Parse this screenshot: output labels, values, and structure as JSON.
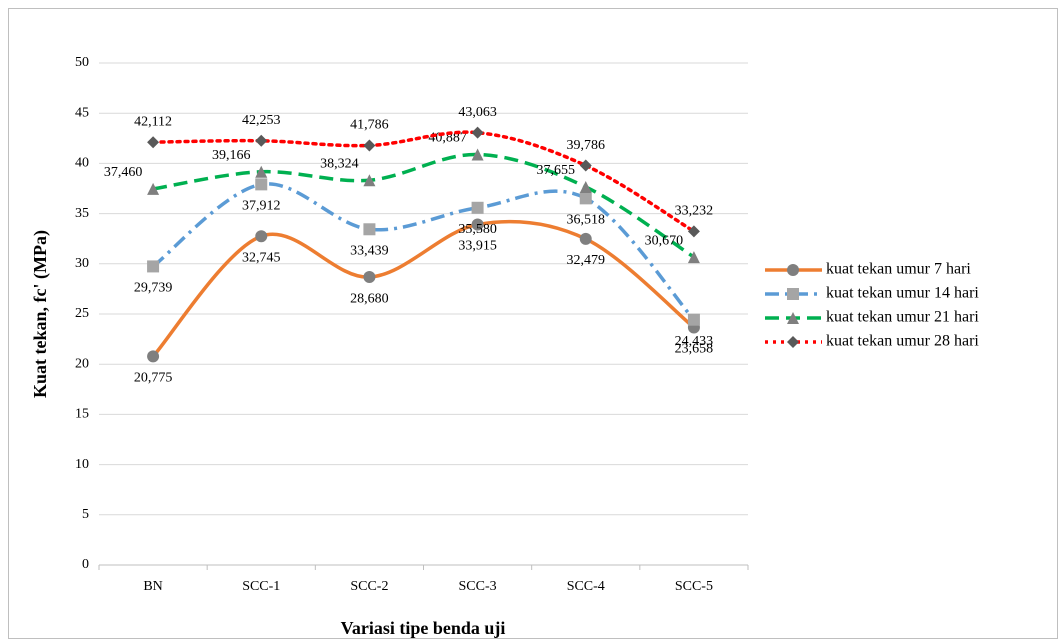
{
  "chart_data": {
    "type": "line",
    "x_label": "Variasi tipe benda uji",
    "y_label": "Kuat tekan, fc' (MPa)",
    "categories": [
      "BN",
      "SCC-1",
      "SCC-2",
      "SCC-3",
      "SCC-4",
      "SCC-5"
    ],
    "ylim": [
      0,
      50
    ],
    "yticks": [
      0,
      5,
      10,
      15,
      20,
      25,
      30,
      35,
      40,
      45,
      50
    ],
    "grid": true,
    "legend": "right",
    "series": [
      {
        "name": "kuat tekan umur 7 hari",
        "color": "#ed7d31",
        "marker": "circle",
        "marker_color": "#7f7f7f",
        "dash": "solid",
        "values": [
          20.775,
          32.745,
          28.68,
          33.915,
          32.479,
          23.658
        ],
        "value_labels": [
          "20,775",
          "32,745",
          "28,680",
          "33,915",
          "32,479",
          "23,658"
        ]
      },
      {
        "name": "kuat tekan umur 14 hari",
        "color": "#5b9bd5",
        "marker": "square",
        "marker_color": "#a5a5a5",
        "dash": "dashdot",
        "values": [
          29.739,
          37.912,
          33.439,
          35.58,
          36.518,
          24.433
        ],
        "value_labels": [
          "29,739",
          "37,912",
          "33,439",
          "35,580",
          "36,518",
          "24,433"
        ]
      },
      {
        "name": "kuat tekan umur 21 hari",
        "color": "#00b050",
        "marker": "triangle",
        "marker_color": "#7f7f7f",
        "dash": "dashed",
        "values": [
          37.46,
          39.166,
          38.324,
          40.887,
          37.655,
          30.67
        ],
        "value_labels": [
          "37,460",
          "39,166",
          "38,324",
          "40,887",
          "37,655",
          "30,670"
        ]
      },
      {
        "name": "kuat tekan umur 28 hari",
        "color": "#ff0000",
        "marker": "diamond",
        "marker_color": "#595959",
        "dash": "dotted",
        "values": [
          42.112,
          42.253,
          41.786,
          43.063,
          39.786,
          33.232
        ],
        "value_labels": [
          "42,112",
          "42,253",
          "41,786",
          "43,063",
          "39,786",
          "33,232"
        ]
      }
    ]
  }
}
